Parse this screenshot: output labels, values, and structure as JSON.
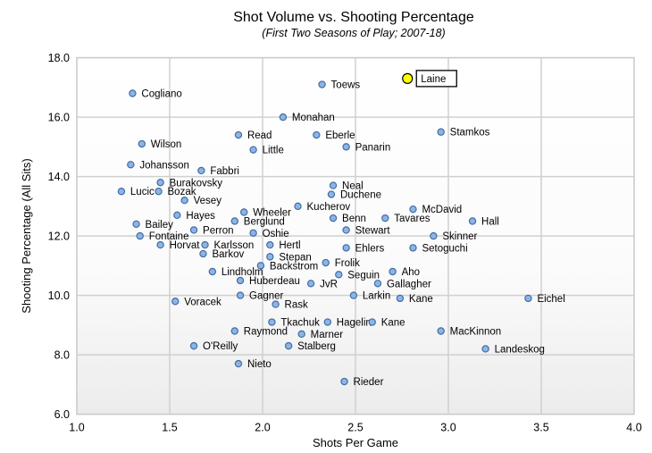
{
  "chart_data": {
    "type": "scatter",
    "title": "Shot Volume vs. Shooting Percentage",
    "subtitle": "(First Two Seasons of Play; 2007-18)",
    "xlabel": "Shots Per Game",
    "ylabel": "Shooting Percentage (All Sits)",
    "xlim": [
      1.0,
      4.0
    ],
    "ylim": [
      6.0,
      18.0
    ],
    "xticks": [
      "1.0",
      "1.5",
      "2.0",
      "2.5",
      "3.0",
      "3.5",
      "4.0"
    ],
    "yticks": [
      "6.0",
      "8.0",
      "10.0",
      "12.0",
      "14.0",
      "16.0",
      "18.0"
    ],
    "grid": true,
    "highlight_color": "#ffff00",
    "point_color": "#8fb4e3",
    "points": [
      {
        "name": "Laine",
        "x": 2.78,
        "y": 17.3,
        "highlight": true
      },
      {
        "name": "Cogliano",
        "x": 1.3,
        "y": 16.8
      },
      {
        "name": "Toews",
        "x": 2.32,
        "y": 17.1
      },
      {
        "name": "Monahan",
        "x": 2.11,
        "y": 16.0
      },
      {
        "name": "Read",
        "x": 1.87,
        "y": 15.4
      },
      {
        "name": "Eberle",
        "x": 2.29,
        "y": 15.4
      },
      {
        "name": "Stamkos",
        "x": 2.96,
        "y": 15.5
      },
      {
        "name": "Panarin",
        "x": 2.45,
        "y": 15.0
      },
      {
        "name": "Wilson",
        "x": 1.35,
        "y": 15.1
      },
      {
        "name": "Little",
        "x": 1.95,
        "y": 14.9
      },
      {
        "name": "Johansson",
        "x": 1.29,
        "y": 14.4
      },
      {
        "name": "Fabbri",
        "x": 1.67,
        "y": 14.2
      },
      {
        "name": "Burakovsky",
        "x": 1.45,
        "y": 13.8
      },
      {
        "name": "Neal",
        "x": 2.38,
        "y": 13.7
      },
      {
        "name": "Lucic",
        "x": 1.24,
        "y": 13.5
      },
      {
        "name": "Bozak",
        "x": 1.44,
        "y": 13.5
      },
      {
        "name": "Duchene",
        "x": 2.37,
        "y": 13.4
      },
      {
        "name": "Vesey",
        "x": 1.58,
        "y": 13.2
      },
      {
        "name": "Kucherov",
        "x": 2.19,
        "y": 13.0
      },
      {
        "name": "McDavid",
        "x": 2.81,
        "y": 12.9
      },
      {
        "name": "Wheeler",
        "x": 1.9,
        "y": 12.8
      },
      {
        "name": "Hayes",
        "x": 1.54,
        "y": 12.7
      },
      {
        "name": "Benn",
        "x": 2.38,
        "y": 12.6
      },
      {
        "name": "Tavares",
        "x": 2.66,
        "y": 12.6
      },
      {
        "name": "Hall",
        "x": 3.13,
        "y": 12.5
      },
      {
        "name": "Berglund",
        "x": 1.85,
        "y": 12.5
      },
      {
        "name": "Bailey",
        "x": 1.32,
        "y": 12.4
      },
      {
        "name": "Perron",
        "x": 1.63,
        "y": 12.2
      },
      {
        "name": "Stewart",
        "x": 2.45,
        "y": 12.2
      },
      {
        "name": "Oshie",
        "x": 1.95,
        "y": 12.1
      },
      {
        "name": "Fontaine",
        "x": 1.34,
        "y": 12.0
      },
      {
        "name": "Skinner",
        "x": 2.92,
        "y": 12.0
      },
      {
        "name": "Horvat",
        "x": 1.45,
        "y": 11.7
      },
      {
        "name": "Karlsson",
        "x": 1.69,
        "y": 11.7
      },
      {
        "name": "Hertl",
        "x": 2.04,
        "y": 11.7
      },
      {
        "name": "Ehlers",
        "x": 2.45,
        "y": 11.6
      },
      {
        "name": "Setoguchi",
        "x": 2.81,
        "y": 11.6
      },
      {
        "name": "Barkov",
        "x": 1.68,
        "y": 11.4
      },
      {
        "name": "Stepan",
        "x": 2.04,
        "y": 11.3
      },
      {
        "name": "Frolik",
        "x": 2.34,
        "y": 11.1
      },
      {
        "name": "Backstrom",
        "x": 1.99,
        "y": 11.0
      },
      {
        "name": "Aho",
        "x": 2.7,
        "y": 10.8
      },
      {
        "name": "Lindholm",
        "x": 1.73,
        "y": 10.8
      },
      {
        "name": "Seguin",
        "x": 2.41,
        "y": 10.7
      },
      {
        "name": "Huberdeau",
        "x": 1.88,
        "y": 10.5
      },
      {
        "name": "JvR",
        "x": 2.26,
        "y": 10.4
      },
      {
        "name": "Gallagher",
        "x": 2.62,
        "y": 10.4
      },
      {
        "name": "Larkin",
        "x": 2.49,
        "y": 10.0
      },
      {
        "name": "Gagner",
        "x": 1.88,
        "y": 10.0
      },
      {
        "name": "Kane",
        "x": 2.74,
        "y": 9.9
      },
      {
        "name": "Eichel",
        "x": 3.43,
        "y": 9.9
      },
      {
        "name": "Voracek",
        "x": 1.53,
        "y": 9.8
      },
      {
        "name": "Rask",
        "x": 2.07,
        "y": 9.7
      },
      {
        "name": "Tkachuk",
        "x": 2.05,
        "y": 9.1
      },
      {
        "name": "Hagelin",
        "x": 2.35,
        "y": 9.1
      },
      {
        "name": "Kane",
        "x": 2.59,
        "y": 9.1
      },
      {
        "name": "Raymond",
        "x": 1.85,
        "y": 8.8
      },
      {
        "name": "MacKinnon",
        "x": 2.96,
        "y": 8.8
      },
      {
        "name": "Marner",
        "x": 2.21,
        "y": 8.7
      },
      {
        "name": "O'Reilly",
        "x": 1.63,
        "y": 8.3
      },
      {
        "name": "Stalberg",
        "x": 2.14,
        "y": 8.3
      },
      {
        "name": "Landeskog",
        "x": 3.2,
        "y": 8.2
      },
      {
        "name": "Nieto",
        "x": 1.87,
        "y": 7.7
      },
      {
        "name": "Rieder",
        "x": 2.44,
        "y": 7.1
      }
    ]
  }
}
